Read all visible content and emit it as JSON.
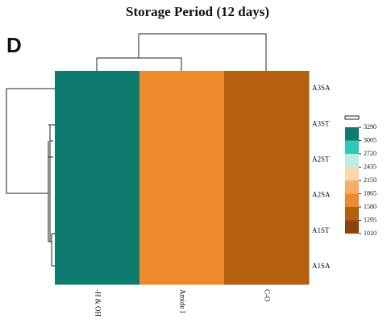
{
  "chart_data": {
    "type": "heatmap",
    "title": "Storage Period (12 days)",
    "panel_label": "D",
    "columns": [
      "-H & OH",
      "Amide I",
      "C-O"
    ],
    "rows": [
      "A3SA",
      "A3ST",
      "A2ST",
      "A2SA",
      "A1ST",
      "A1SA"
    ],
    "values": [
      [
        3150,
        1700,
        1450
      ],
      [
        3150,
        1700,
        1450
      ],
      [
        3150,
        1700,
        1450
      ],
      [
        3150,
        1700,
        1450
      ],
      [
        3150,
        1700,
        1450
      ],
      [
        3150,
        1700,
        1450
      ]
    ],
    "colorbar_ticks": [
      3290,
      3005,
      2720,
      2435,
      2150,
      1865,
      1580,
      1295,
      1010
    ],
    "colorbar_colors": [
      "#8a440a",
      "#b5600f",
      "#ee8a2c",
      "#f9ad65",
      "#fbd9b0",
      "#bdede4",
      "#2ec9b9",
      "#0f7a6e"
    ]
  }
}
